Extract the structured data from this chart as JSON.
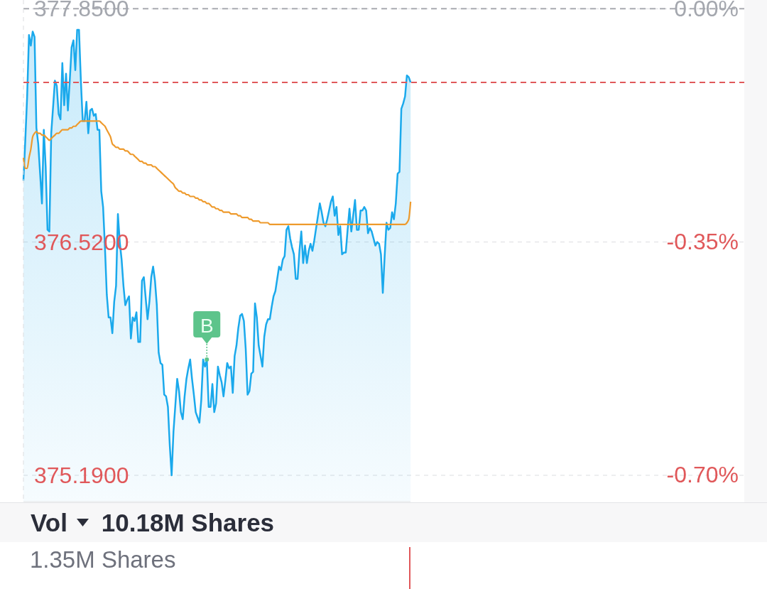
{
  "chart_data": [
    {
      "type": "area",
      "ylim": [
        375.04,
        377.9
      ],
      "yticks": [
        {
          "value": 375.19,
          "label": "375.1900"
        },
        {
          "value": 376.52,
          "label": "376.5200"
        },
        {
          "value": 377.85,
          "label": "377.8500"
        }
      ],
      "y2lim": [
        -0.74,
        0.013
      ],
      "y2ticks": [
        {
          "value": -0.7,
          "label": "-0.70%"
        },
        {
          "value": -0.35,
          "label": "-0.35%"
        },
        {
          "value": 0,
          "label": "0.00%"
        }
      ],
      "grid": "y",
      "tick_labels": "y",
      "ref_lines": [
        {
          "axis": "y",
          "value": 377.85,
          "color": "#a9abb1",
          "line_style": "dashed"
        },
        {
          "axis": "y",
          "value": 377.43,
          "color": "#e0585a",
          "line_style": "dashed"
        }
      ],
      "categories": [
        null,
        null,
        null,
        null,
        null,
        null,
        null,
        null,
        null,
        null,
        null,
        null,
        null,
        null,
        null,
        null,
        null,
        null,
        null,
        null,
        null,
        null,
        null,
        null,
        null,
        null,
        null,
        null,
        null,
        null,
        null,
        null,
        null,
        null,
        null,
        null,
        null,
        null,
        null,
        null,
        null,
        null,
        null,
        null,
        null,
        null,
        null,
        null,
        null,
        null,
        null,
        null,
        null,
        null,
        null,
        null,
        null,
        null,
        null,
        null,
        null,
        null,
        null,
        null,
        null,
        null,
        null,
        null,
        null,
        null,
        null,
        null,
        null,
        null,
        null,
        null,
        null,
        null,
        null,
        null,
        null,
        null,
        null,
        null,
        null,
        null,
        null,
        null,
        null,
        null,
        null,
        null,
        null,
        null,
        null,
        null,
        null,
        null,
        null,
        null,
        null,
        null,
        null,
        null,
        null,
        null,
        null,
        null,
        null,
        null,
        null,
        null,
        null,
        null,
        null,
        null,
        null,
        null,
        null,
        null,
        null,
        null,
        null,
        null,
        null,
        null,
        null,
        null,
        null,
        null,
        null,
        null,
        null,
        null,
        null,
        null,
        null,
        null,
        null,
        null,
        null,
        null,
        null,
        null,
        null,
        null,
        null,
        null,
        null,
        null,
        null,
        null,
        null,
        null,
        null,
        null,
        null,
        null,
        null,
        null,
        null,
        null,
        null,
        null,
        null,
        null,
        null,
        null,
        null,
        null,
        null,
        null,
        null,
        null,
        null,
        null,
        null,
        null,
        null,
        null,
        null,
        null,
        null,
        null,
        null,
        null,
        null,
        null,
        null,
        null,
        null,
        null,
        null,
        null,
        null,
        null,
        null,
        null,
        null,
        null,
        null,
        null,
        null,
        null,
        null,
        null,
        null,
        null,
        null,
        null
      ],
      "series": [
        {
          "color": "#1aa9ec",
          "values": [
            376.87,
            377.1,
            377.35,
            377.7,
            377.64,
            377.72,
            377.69,
            377.17,
            377.08,
            376.91,
            376.74,
            377.16,
            376.95,
            376.59,
            376.58,
            377.14,
            377.29,
            377.44,
            377.41,
            377.25,
            377.22,
            377.54,
            377.3,
            377.48,
            377.27,
            377.44,
            377.63,
            377.67,
            377.5,
            377.73,
            377.73,
            377.44,
            377.21,
            377.21,
            377.32,
            377.14,
            377.27,
            377.28,
            377.24,
            377.25,
            377.16,
            377.16,
            376.81,
            376.72,
            376.49,
            376.22,
            376.09,
            376.09,
            376.0,
            376.18,
            376.27,
            376.68,
            376.52,
            376.42,
            376.27,
            376.16,
            376.19,
            376.21,
            375.97,
            376.09,
            376.07,
            376.12,
            375.95,
            375.95,
            376.3,
            376.32,
            376.2,
            376.08,
            376.18,
            376.32,
            376.38,
            376.3,
            376.16,
            375.89,
            375.83,
            375.82,
            375.65,
            375.64,
            375.58,
            375.36,
            375.19,
            375.44,
            375.59,
            375.74,
            375.67,
            375.55,
            375.51,
            375.64,
            375.74,
            375.8,
            375.85,
            375.74,
            375.65,
            375.55,
            375.52,
            375.49,
            375.62,
            375.85,
            375.81,
            375.85,
            375.58,
            375.58,
            375.71,
            375.55,
            375.6,
            375.81,
            375.76,
            375.72,
            375.64,
            375.73,
            375.83,
            375.8,
            375.81,
            375.66,
            375.87,
            375.93,
            376.03,
            376.1,
            376.11,
            376.07,
            375.91,
            375.65,
            375.67,
            375.77,
            375.78,
            376.17,
            376.09,
            375.93,
            375.87,
            375.81,
            375.98,
            376.05,
            376.08,
            376.08,
            376.15,
            376.21,
            376.24,
            376.31,
            376.38,
            376.36,
            376.42,
            376.44,
            376.59,
            376.61,
            376.54,
            376.49,
            376.45,
            376.31,
            376.31,
            376.47,
            376.58,
            376.4,
            376.5,
            376.4,
            376.47,
            376.51,
            376.47,
            376.53,
            376.6,
            376.67,
            376.74,
            376.69,
            376.63,
            376.61,
            376.65,
            376.7,
            376.75,
            376.78,
            376.67,
            376.72,
            376.56,
            376.61,
            376.45,
            376.46,
            376.46,
            376.59,
            376.71,
            376.58,
            376.67,
            376.76,
            376.59,
            376.59,
            376.7,
            376.7,
            376.72,
            376.7,
            376.57,
            376.6,
            376.58,
            376.54,
            376.5,
            376.52,
            376.51,
            376.45,
            376.23,
            376.44,
            376.63,
            376.59,
            376.6,
            376.69,
            376.65,
            376.74,
            376.91,
            376.92,
            377.28,
            377.31,
            377.35,
            377.47,
            377.46,
            377.43
          ]
        },
        {
          "type": "line",
          "color": "#ee9a2c",
          "values": [
            377.0,
            376.94,
            376.94,
            377.0,
            377.05,
            377.12,
            377.14,
            377.15,
            377.14,
            377.14,
            377.13,
            377.13,
            377.12,
            377.11,
            377.1,
            377.11,
            377.12,
            377.13,
            377.14,
            377.14,
            377.15,
            377.16,
            377.16,
            377.16,
            377.16,
            377.17,
            377.17,
            377.18,
            377.18,
            377.19,
            377.2,
            377.21,
            377.21,
            377.21,
            377.21,
            377.21,
            377.21,
            377.21,
            377.21,
            377.21,
            377.21,
            377.21,
            377.2,
            377.19,
            377.18,
            377.16,
            377.14,
            377.12,
            377.08,
            377.07,
            377.06,
            377.06,
            377.05,
            377.05,
            377.05,
            377.04,
            377.04,
            377.03,
            377.02,
            377.02,
            377.01,
            377.0,
            376.99,
            376.98,
            376.98,
            376.97,
            376.97,
            376.96,
            376.96,
            376.96,
            376.95,
            376.95,
            376.94,
            376.93,
            376.92,
            376.91,
            376.9,
            376.89,
            376.88,
            376.87,
            376.86,
            376.85,
            376.83,
            376.82,
            376.81,
            376.81,
            376.8,
            376.8,
            376.79,
            376.79,
            376.78,
            376.78,
            376.78,
            376.77,
            376.77,
            376.76,
            376.76,
            376.75,
            376.75,
            376.74,
            376.74,
            376.73,
            376.72,
            376.72,
            376.71,
            376.71,
            376.7,
            376.7,
            376.69,
            376.69,
            376.69,
            376.69,
            376.68,
            376.68,
            376.68,
            376.68,
            376.67,
            376.67,
            376.66,
            376.66,
            376.66,
            376.66,
            376.65,
            376.65,
            376.64,
            376.64,
            376.64,
            376.64,
            376.63,
            376.63,
            376.63,
            376.63,
            376.63,
            376.62,
            376.62,
            376.62,
            376.62,
            376.62,
            376.62,
            376.62,
            376.62,
            376.62,
            376.62,
            376.62,
            376.62,
            376.62,
            376.62,
            376.62,
            376.62,
            376.62,
            376.62,
            376.62,
            376.62,
            376.62,
            376.62,
            376.62,
            376.62,
            376.62,
            376.62,
            376.62,
            376.62,
            376.62,
            376.62,
            376.62,
            376.62,
            376.62,
            376.62,
            376.62,
            376.62,
            376.62,
            376.62,
            376.62,
            376.62,
            376.62,
            376.62,
            376.62,
            376.62,
            376.62,
            376.62,
            376.62,
            376.62,
            376.62,
            376.62,
            376.62,
            376.62,
            376.62,
            376.62,
            376.62,
            376.62,
            376.62,
            376.62,
            376.62,
            376.62,
            376.62,
            376.62,
            376.62,
            376.62,
            376.62,
            376.62,
            376.62,
            376.62,
            376.62,
            376.62,
            376.62,
            376.62,
            376.62,
            376.62,
            376.63,
            376.65,
            376.75
          ]
        },
        {
          "type": "scatter",
          "name": "B",
          "color": "#5dc48b",
          "values": [
            null,
            null,
            null,
            null,
            null,
            null,
            null,
            null,
            null,
            null,
            null,
            null,
            null,
            null,
            null,
            null,
            null,
            null,
            null,
            null,
            null,
            null,
            null,
            null,
            null,
            null,
            null,
            null,
            null,
            null,
            null,
            null,
            null,
            null,
            null,
            null,
            null,
            null,
            null,
            null,
            null,
            null,
            null,
            null,
            null,
            null,
            null,
            null,
            null,
            null,
            null,
            null,
            null,
            null,
            null,
            null,
            null,
            null,
            null,
            null,
            null,
            null,
            null,
            null,
            null,
            null,
            null,
            null,
            null,
            null,
            null,
            null,
            null,
            null,
            null,
            null,
            null,
            null,
            null,
            null,
            null,
            null,
            null,
            null,
            null,
            null,
            null,
            null,
            null,
            null,
            null,
            null,
            null,
            null,
            null,
            null,
            null,
            null,
            null,
            375.85,
            null,
            null,
            null,
            null,
            null,
            null,
            null,
            null,
            null,
            null,
            null,
            null,
            null,
            null,
            null,
            null,
            null,
            null,
            null,
            null,
            null,
            null,
            null,
            null,
            null,
            null,
            null,
            null,
            null,
            null,
            null,
            null,
            null,
            null,
            null,
            null,
            null,
            null,
            null,
            null,
            null,
            null,
            null,
            null,
            null,
            null,
            null,
            null,
            null,
            null,
            null,
            null,
            null,
            null,
            null,
            null,
            null,
            null,
            null,
            null,
            null,
            null,
            null,
            null,
            null,
            null,
            null,
            null,
            null,
            null,
            null,
            null,
            null,
            null,
            null,
            null,
            null,
            null,
            null,
            null,
            null,
            null,
            null,
            null,
            null,
            null,
            null,
            null,
            null,
            null,
            null,
            null,
            null,
            null,
            null,
            null,
            null,
            null,
            null,
            null,
            null,
            null,
            null,
            null,
            null,
            null,
            null,
            null,
            null,
            null
          ]
        }
      ]
    },
    {
      "type": "other",
      "title": "Vol",
      "subtitle": "10.18M Shares",
      "annotations": [
        "1.35M Shares"
      ]
    }
  ]
}
